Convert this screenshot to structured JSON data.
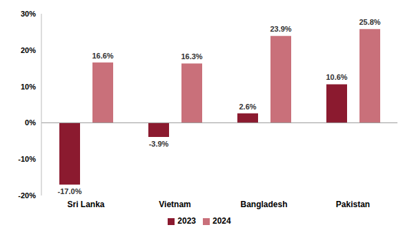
{
  "chart_data": {
    "type": "bar",
    "categories": [
      "Sri Lanka",
      "Vietnam",
      "Bangladesh",
      "Pakistan"
    ],
    "series": [
      {
        "name": "2023",
        "color": "#8b1a2f",
        "values": [
          -17.0,
          -3.9,
          2.6,
          10.6
        ],
        "value_labels": [
          "-17.0%",
          "-3.9%",
          "2.6%",
          "10.6%"
        ]
      },
      {
        "name": "2024",
        "color": "#c9707a",
        "values": [
          16.6,
          16.3,
          23.9,
          25.8
        ],
        "value_labels": [
          "16.6%",
          "16.3%",
          "23.9%",
          "25.8%"
        ]
      }
    ],
    "ylim": [
      -20,
      30
    ],
    "yticks": [
      {
        "value": -20,
        "label": "-20%"
      },
      {
        "value": -10,
        "label": "-10%"
      },
      {
        "value": 0,
        "label": "0%"
      },
      {
        "value": 10,
        "label": "10%"
      },
      {
        "value": 20,
        "label": "20%"
      },
      {
        "value": 30,
        "label": "30%"
      }
    ],
    "grid": false,
    "data_labels": true,
    "legend": "bottom"
  }
}
